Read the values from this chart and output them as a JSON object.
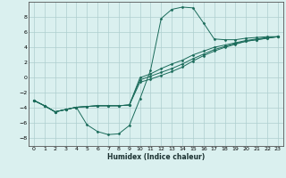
{
  "xlabel": "Humidex (Indice chaleur)",
  "xlim": [
    -0.5,
    23.5
  ],
  "ylim": [
    -9,
    10
  ],
  "xticks": [
    0,
    1,
    2,
    3,
    4,
    5,
    6,
    7,
    8,
    9,
    10,
    11,
    12,
    13,
    14,
    15,
    16,
    17,
    18,
    19,
    20,
    21,
    22,
    23
  ],
  "yticks": [
    -8,
    -6,
    -4,
    -2,
    0,
    2,
    4,
    6,
    8
  ],
  "bg_color": "#daf0ef",
  "line_color": "#1a6b5a",
  "grid_color": "#aecece",
  "curve1_x": [
    0,
    1,
    2,
    3,
    4,
    5,
    6,
    7,
    8,
    9,
    10,
    11,
    12,
    13,
    14,
    15,
    16,
    17,
    18,
    19,
    20,
    21,
    22,
    23
  ],
  "curve1_y": [
    -3.0,
    -3.7,
    -4.5,
    -4.2,
    -3.9,
    -6.2,
    -7.1,
    -7.5,
    -7.4,
    -6.3,
    -2.8,
    1.0,
    7.8,
    9.0,
    9.3,
    9.2,
    7.2,
    5.1,
    5.0,
    5.0,
    5.2,
    5.3,
    5.4,
    5.4
  ],
  "curve2_x": [
    0,
    1,
    2,
    3,
    4,
    5,
    6,
    7,
    8,
    9,
    10,
    11,
    12,
    13,
    14,
    15,
    16,
    17,
    18,
    19,
    20,
    21,
    22,
    23
  ],
  "curve2_y": [
    -3.0,
    -3.7,
    -4.5,
    -4.2,
    -3.9,
    -3.8,
    -3.7,
    -3.7,
    -3.7,
    -3.6,
    0.0,
    0.5,
    1.2,
    1.8,
    2.3,
    3.0,
    3.5,
    4.0,
    4.3,
    4.6,
    4.9,
    5.1,
    5.3,
    5.4
  ],
  "curve3_x": [
    0,
    1,
    2,
    3,
    4,
    5,
    6,
    7,
    8,
    9,
    10,
    11,
    12,
    13,
    14,
    15,
    16,
    17,
    18,
    19,
    20,
    21,
    22,
    23
  ],
  "curve3_y": [
    -3.0,
    -3.7,
    -4.5,
    -4.2,
    -3.9,
    -3.8,
    -3.7,
    -3.7,
    -3.7,
    -3.6,
    -0.3,
    0.2,
    0.7,
    1.2,
    1.8,
    2.5,
    3.1,
    3.7,
    4.1,
    4.5,
    4.8,
    5.0,
    5.2,
    5.4
  ],
  "curve4_x": [
    0,
    1,
    2,
    3,
    4,
    5,
    6,
    7,
    8,
    9,
    10,
    11,
    12,
    13,
    14,
    15,
    16,
    17,
    18,
    19,
    20,
    21,
    22,
    23
  ],
  "curve4_y": [
    -3.0,
    -3.7,
    -4.5,
    -4.2,
    -3.9,
    -3.8,
    -3.7,
    -3.7,
    -3.7,
    -3.6,
    -0.6,
    -0.2,
    0.3,
    0.8,
    1.4,
    2.2,
    2.9,
    3.5,
    4.0,
    4.4,
    4.8,
    5.0,
    5.2,
    5.4
  ]
}
